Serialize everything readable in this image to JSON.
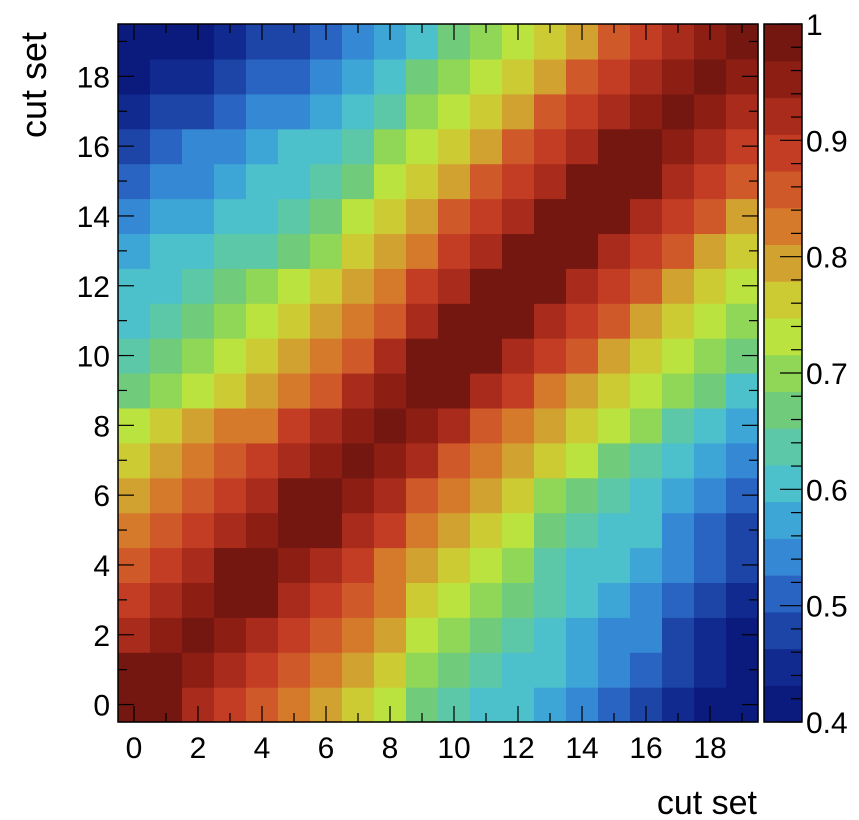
{
  "chart_data": {
    "type": "heatmap",
    "xlabel": "cut set",
    "ylabel": "cut set",
    "x": [
      0,
      1,
      2,
      3,
      4,
      5,
      6,
      7,
      8,
      9,
      10,
      11,
      12,
      13,
      14,
      15,
      16,
      17,
      18,
      19
    ],
    "y": [
      0,
      1,
      2,
      3,
      4,
      5,
      6,
      7,
      8,
      9,
      10,
      11,
      12,
      13,
      14,
      15,
      16,
      17,
      18,
      19
    ],
    "x_ticks": [
      "0",
      "2",
      "4",
      "6",
      "8",
      "10",
      "12",
      "14",
      "16",
      "18"
    ],
    "y_ticks": [
      "0",
      "2",
      "4",
      "6",
      "8",
      "10",
      "12",
      "14",
      "16",
      "18"
    ],
    "colorbar_ticks": [
      "0.4",
      "0.5",
      "0.6",
      "0.7",
      "0.8",
      "0.9",
      "1"
    ],
    "zlim": [
      0.4,
      1.0
    ],
    "colormap": [
      "#0a1a7d",
      "#112a8f",
      "#1c45a7",
      "#2a64c2",
      "#3588d4",
      "#3ea6d6",
      "#4cc0cb",
      "#5cc8a8",
      "#70cc7a",
      "#90d657",
      "#bae33f",
      "#cdcb34",
      "#d2a231",
      "#d57a2a",
      "#d0592a",
      "#c23d24",
      "#a92b1c",
      "#8c1e14",
      "#731710"
    ],
    "z": [
      [
        1.0,
        0.99,
        0.93,
        0.9,
        0.86,
        0.83,
        0.8,
        0.76,
        0.72,
        0.68,
        0.64,
        0.62,
        0.59,
        0.56,
        0.53,
        0.51,
        0.48,
        0.46,
        0.43,
        0.41
      ],
      [
        0.99,
        1.0,
        0.95,
        0.91,
        0.88,
        0.86,
        0.82,
        0.78,
        0.75,
        0.69,
        0.66,
        0.64,
        0.62,
        0.59,
        0.56,
        0.53,
        0.5,
        0.47,
        0.44,
        0.42
      ],
      [
        0.93,
        0.95,
        1.0,
        0.96,
        0.92,
        0.89,
        0.86,
        0.82,
        0.78,
        0.73,
        0.7,
        0.68,
        0.65,
        0.61,
        0.58,
        0.55,
        0.53,
        0.49,
        0.46,
        0.43
      ],
      [
        0.9,
        0.91,
        0.96,
        1.0,
        0.97,
        0.93,
        0.89,
        0.86,
        0.82,
        0.76,
        0.73,
        0.7,
        0.67,
        0.63,
        0.6,
        0.57,
        0.55,
        0.51,
        0.48,
        0.45
      ],
      [
        0.86,
        0.88,
        0.92,
        0.97,
        1.0,
        0.96,
        0.92,
        0.88,
        0.84,
        0.79,
        0.76,
        0.72,
        0.69,
        0.65,
        0.62,
        0.59,
        0.57,
        0.53,
        0.5,
        0.47
      ],
      [
        0.83,
        0.86,
        0.89,
        0.93,
        0.96,
        1.0,
        0.98,
        0.93,
        0.88,
        0.83,
        0.79,
        0.75,
        0.72,
        0.68,
        0.65,
        0.62,
        0.59,
        0.55,
        0.52,
        0.49
      ],
      [
        0.8,
        0.82,
        0.86,
        0.89,
        0.92,
        0.98,
        1.0,
        0.96,
        0.91,
        0.86,
        0.82,
        0.78,
        0.75,
        0.71,
        0.68,
        0.64,
        0.61,
        0.57,
        0.54,
        0.51
      ],
      [
        0.76,
        0.78,
        0.82,
        0.86,
        0.88,
        0.93,
        0.96,
        1.0,
        0.96,
        0.91,
        0.87,
        0.83,
        0.79,
        0.75,
        0.72,
        0.68,
        0.65,
        0.61,
        0.58,
        0.55
      ],
      [
        0.72,
        0.75,
        0.78,
        0.82,
        0.84,
        0.88,
        0.91,
        0.96,
        1.0,
        0.96,
        0.91,
        0.87,
        0.83,
        0.79,
        0.76,
        0.72,
        0.69,
        0.65,
        0.62,
        0.58
      ],
      [
        0.68,
        0.69,
        0.73,
        0.76,
        0.79,
        0.83,
        0.86,
        0.91,
        0.96,
        1.0,
        0.97,
        0.92,
        0.88,
        0.84,
        0.8,
        0.77,
        0.73,
        0.69,
        0.66,
        0.62
      ],
      [
        0.64,
        0.66,
        0.7,
        0.73,
        0.76,
        0.79,
        0.82,
        0.87,
        0.91,
        0.97,
        1.0,
        0.98,
        0.93,
        0.89,
        0.85,
        0.81,
        0.77,
        0.73,
        0.7,
        0.66
      ],
      [
        0.62,
        0.64,
        0.68,
        0.7,
        0.72,
        0.75,
        0.78,
        0.83,
        0.87,
        0.92,
        0.98,
        1.0,
        0.97,
        0.93,
        0.89,
        0.85,
        0.81,
        0.77,
        0.73,
        0.69
      ],
      [
        0.59,
        0.62,
        0.65,
        0.67,
        0.69,
        0.72,
        0.75,
        0.79,
        0.83,
        0.88,
        0.93,
        0.97,
        1.0,
        0.97,
        0.93,
        0.89,
        0.85,
        0.81,
        0.77,
        0.73
      ],
      [
        0.56,
        0.59,
        0.61,
        0.63,
        0.65,
        0.68,
        0.71,
        0.75,
        0.79,
        0.84,
        0.89,
        0.93,
        0.97,
        1.0,
        0.97,
        0.93,
        0.89,
        0.85,
        0.81,
        0.77
      ],
      [
        0.53,
        0.56,
        0.58,
        0.6,
        0.62,
        0.65,
        0.68,
        0.72,
        0.76,
        0.8,
        0.85,
        0.89,
        0.93,
        0.97,
        1.0,
        0.97,
        0.93,
        0.89,
        0.85,
        0.81
      ],
      [
        0.51,
        0.53,
        0.55,
        0.57,
        0.59,
        0.62,
        0.64,
        0.68,
        0.72,
        0.77,
        0.81,
        0.85,
        0.89,
        0.93,
        0.97,
        1.0,
        0.98,
        0.93,
        0.89,
        0.85
      ],
      [
        0.48,
        0.5,
        0.53,
        0.55,
        0.57,
        0.59,
        0.61,
        0.65,
        0.69,
        0.73,
        0.77,
        0.81,
        0.85,
        0.89,
        0.93,
        0.98,
        1.0,
        0.96,
        0.92,
        0.88
      ],
      [
        0.46,
        0.47,
        0.49,
        0.51,
        0.53,
        0.55,
        0.57,
        0.61,
        0.65,
        0.69,
        0.73,
        0.77,
        0.81,
        0.85,
        0.89,
        0.93,
        0.96,
        1.0,
        0.96,
        0.92
      ],
      [
        0.43,
        0.44,
        0.46,
        0.48,
        0.5,
        0.52,
        0.54,
        0.58,
        0.62,
        0.66,
        0.7,
        0.73,
        0.77,
        0.81,
        0.85,
        0.89,
        0.92,
        0.96,
        1.0,
        0.96
      ],
      [
        0.41,
        0.42,
        0.43,
        0.45,
        0.47,
        0.49,
        0.51,
        0.55,
        0.58,
        0.62,
        0.66,
        0.69,
        0.73,
        0.77,
        0.81,
        0.85,
        0.88,
        0.92,
        0.96,
        1.0
      ]
    ]
  }
}
